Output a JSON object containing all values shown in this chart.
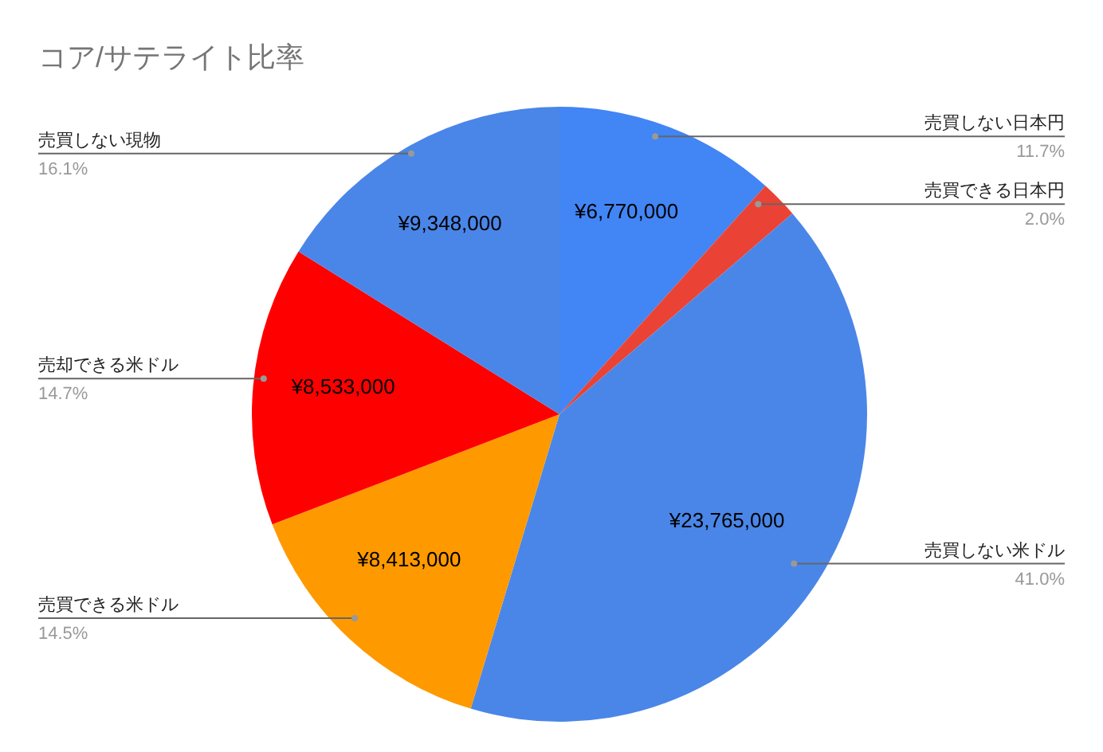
{
  "chart_data": {
    "type": "pie",
    "title": "コア/サテライト比率",
    "categories": [
      "売買しない日本円",
      "売買できる日本円",
      "売買しない米ドル",
      "売買できる米ドル",
      "売却できる米ドル",
      "売買しない現物"
    ],
    "values": [
      6770000,
      1160000,
      23765000,
      8413000,
      8533000,
      9348000
    ],
    "colors": [
      "#4285f4",
      "#ea4335",
      "#4a86e8",
      "#ff9900",
      "#ff0000",
      "#4a86e8"
    ],
    "value_labels": [
      "¥6,770,000",
      null,
      "¥23,765,000",
      "¥8,413,000",
      "¥8,533,000",
      "¥9,348,000"
    ],
    "annotations": [
      "11.7%",
      "2.0%",
      "41.0%",
      "14.5%",
      "14.7%",
      "16.1%"
    ],
    "legend": false
  }
}
